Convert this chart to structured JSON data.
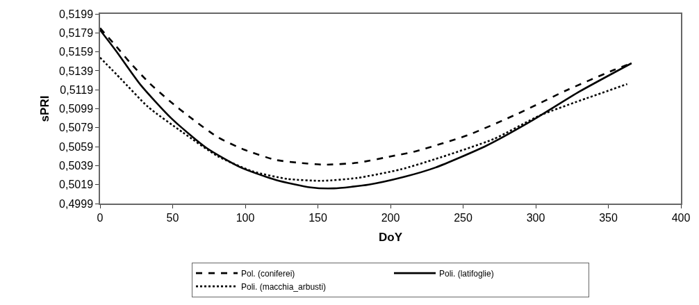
{
  "chart_data": {
    "type": "line",
    "xlabel": "DoY",
    "ylabel": "sPRI",
    "xlim": [
      0,
      400
    ],
    "xticks": [
      0,
      50,
      100,
      150,
      200,
      250,
      300,
      350,
      400
    ],
    "ylim": [
      0.4999,
      0.5199
    ],
    "yticks": [
      {
        "value": 0.4999,
        "label": "0,4999"
      },
      {
        "value": 0.5019,
        "label": "0,5019"
      },
      {
        "value": 0.5039,
        "label": "0,5039"
      },
      {
        "value": 0.5059,
        "label": "0,5059"
      },
      {
        "value": 0.5079,
        "label": "0,5079"
      },
      {
        "value": 0.5099,
        "label": "0,5099"
      },
      {
        "value": 0.5119,
        "label": "0,5119"
      },
      {
        "value": 0.5139,
        "label": "0,5139"
      },
      {
        "value": 0.5159,
        "label": "0,5159"
      },
      {
        "value": 0.5179,
        "label": "0,5179"
      },
      {
        "value": 0.5199,
        "label": "0,5199"
      }
    ],
    "legend": "bottom",
    "series": [
      {
        "name": "Pol. (coniferei)",
        "color": "#000000",
        "line_style": "dashed",
        "x": [
          0,
          11,
          21,
          34,
          48,
          62,
          81,
          99,
          121,
          137,
          154,
          177,
          201,
          217,
          253,
          288,
          322,
          354,
          366
        ],
        "values": [
          0.5184,
          0.5165,
          0.5147,
          0.5126,
          0.5107,
          0.509,
          0.5069,
          0.5056,
          0.5045,
          0.5042,
          0.504,
          0.5042,
          0.5049,
          0.5054,
          0.5071,
          0.5094,
          0.5119,
          0.514,
          0.5147
        ]
      },
      {
        "name": "Poli. (latifoglie)",
        "color": "#000000",
        "line_style": "solid",
        "x": [
          0,
          11,
          28,
          49,
          73,
          97,
          121,
          145,
          161,
          185,
          209,
          231,
          266,
          298,
          330,
          366
        ],
        "values": [
          0.5182,
          0.516,
          0.5124,
          0.5089,
          0.5058,
          0.5037,
          0.5024,
          0.5016,
          0.5015,
          0.5019,
          0.5027,
          0.5037,
          0.506,
          0.5087,
          0.5117,
          0.5147
        ]
      },
      {
        "name": "Poli. (macchia_arbusti)",
        "color": "#000000",
        "line_style": "dotted",
        "x": [
          0,
          14,
          33,
          57,
          81,
          105,
          129,
          153,
          177,
          207,
          231,
          271,
          303,
          335,
          363
        ],
        "values": [
          0.5153,
          0.5131,
          0.5101,
          0.5074,
          0.5049,
          0.5033,
          0.5025,
          0.5023,
          0.5026,
          0.5035,
          0.5046,
          0.5067,
          0.5092,
          0.511,
          0.5125
        ]
      }
    ]
  }
}
